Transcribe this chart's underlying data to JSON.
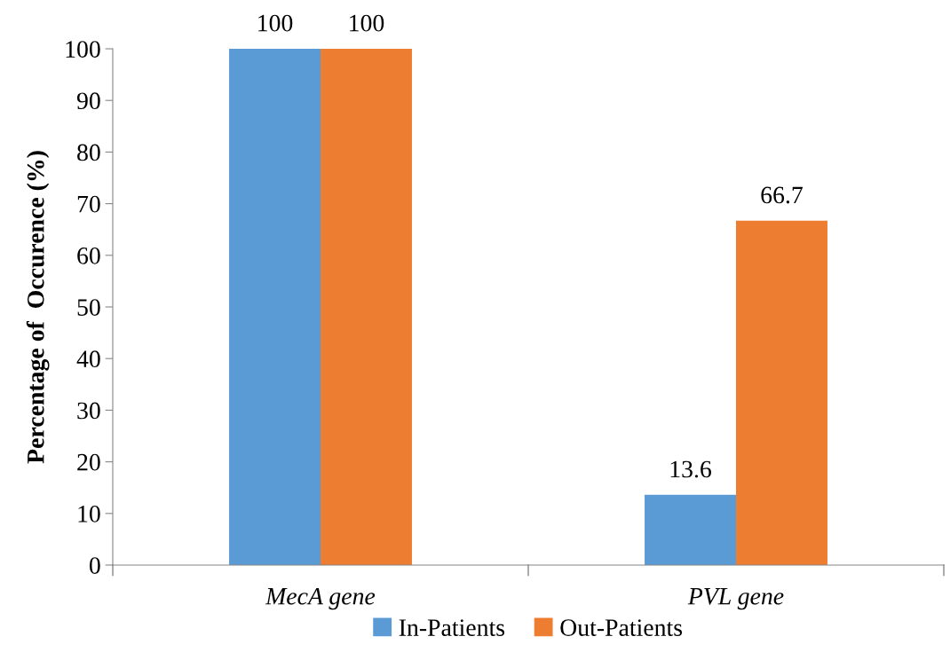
{
  "chart_data": {
    "type": "bar",
    "ylabel": "Percentage of  Occurence (%)",
    "categories": [
      "MecA gene",
      "PVL gene"
    ],
    "series": [
      {
        "name": "In-Patients",
        "color": "#5b9bd5",
        "values": [
          100,
          13.6
        ]
      },
      {
        "name": "Out-Patients",
        "color": "#ed7d31",
        "values": [
          100,
          66.7
        ]
      }
    ],
    "ylim": [
      0,
      100
    ],
    "yticks": [
      0,
      10,
      20,
      30,
      40,
      50,
      60,
      70,
      80,
      90,
      100
    ],
    "data_labels": true,
    "grid": false,
    "legend": "bottom"
  }
}
